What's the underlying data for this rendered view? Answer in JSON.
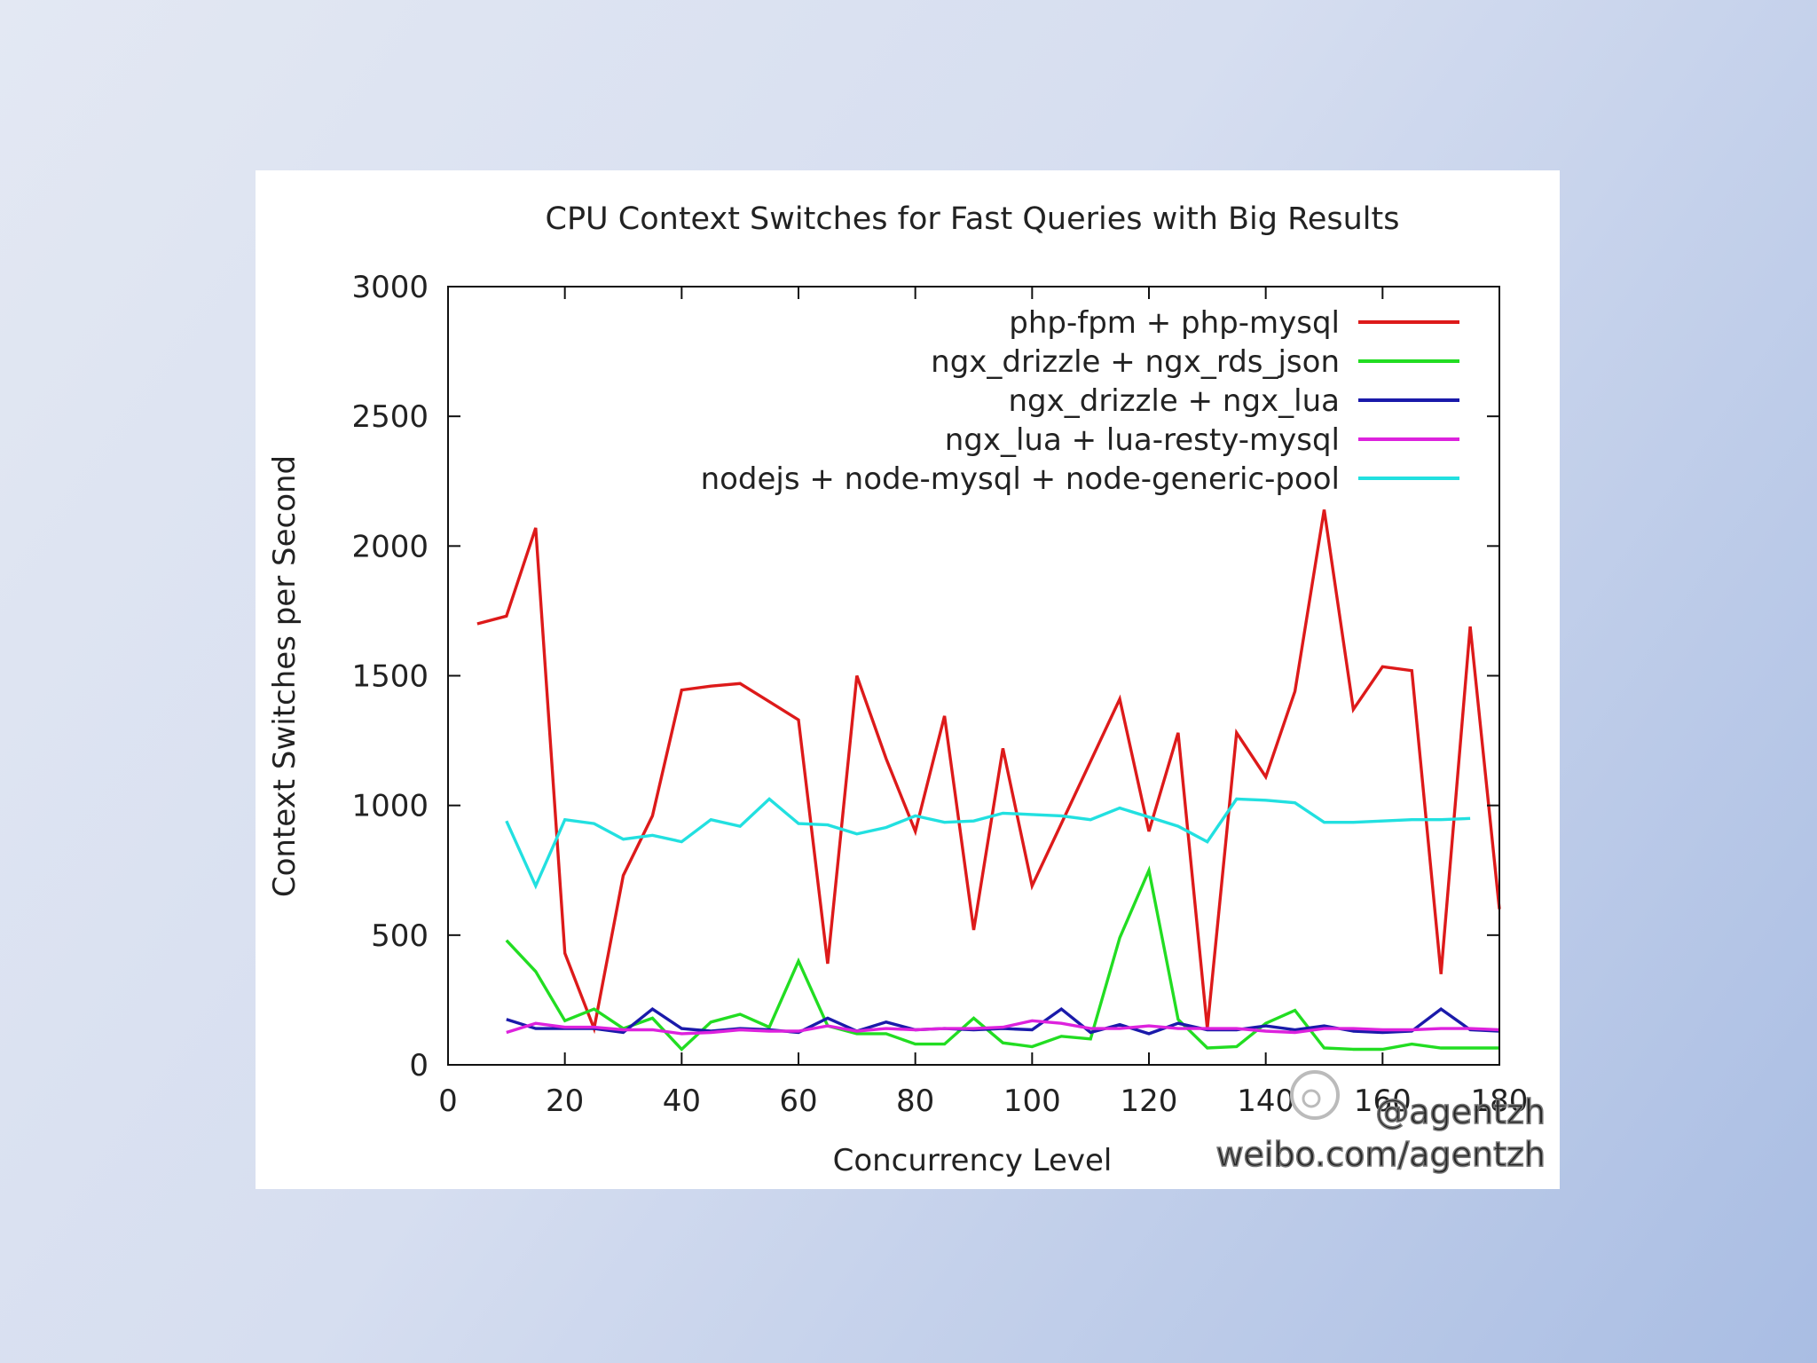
{
  "chart_data": {
    "type": "line",
    "title": "CPU Context Switches for Fast Queries with Big Results",
    "xlabel": "Concurrency Level",
    "ylabel": "Context Switches per Second",
    "xlim": [
      0,
      180
    ],
    "ylim": [
      0,
      3000
    ],
    "xticks": [
      0,
      20,
      40,
      60,
      80,
      100,
      120,
      140,
      160,
      180
    ],
    "xtick_labels": [
      "0",
      "20",
      "40",
      "60",
      "80",
      "100",
      "120",
      "140",
      "160",
      "180"
    ],
    "yticks": [
      0,
      500,
      1000,
      1500,
      2000,
      2500,
      3000
    ],
    "ytick_labels": [
      "0",
      "500",
      "1000",
      "1500",
      "2000",
      "2500",
      "3000"
    ],
    "legend_position": "top-right",
    "grid": false,
    "series": [
      {
        "name": "php-fpm + php-mysql",
        "color": "#dd1a1a",
        "x": [
          5,
          10,
          15,
          20,
          25,
          30,
          35,
          40,
          45,
          50,
          55,
          60,
          65,
          70,
          75,
          80,
          85,
          90,
          95,
          100,
          105,
          110,
          115,
          120,
          125,
          130,
          135,
          140,
          145,
          150,
          155,
          160,
          165,
          170,
          175,
          180
        ],
        "y": [
          1700,
          1730,
          2070,
          430,
          140,
          730,
          960,
          1445,
          1460,
          1470,
          1400,
          1330,
          390,
          1500,
          1180,
          900,
          1345,
          520,
          1220,
          690,
          930,
          1170,
          1410,
          900,
          1280,
          140,
          1280,
          1110,
          1440,
          2140,
          1370,
          1535,
          1520,
          350,
          1690,
          600
        ]
      },
      {
        "name": "ngx_drizzle + ngx_rds_json",
        "color": "#22dd22",
        "x": [
          10,
          15,
          20,
          25,
          30,
          35,
          40,
          45,
          50,
          55,
          60,
          65,
          70,
          75,
          80,
          85,
          90,
          95,
          100,
          105,
          110,
          115,
          120,
          125,
          130,
          135,
          140,
          145,
          150,
          155,
          160,
          165,
          170,
          175,
          180
        ],
        "y": [
          480,
          360,
          170,
          215,
          140,
          180,
          60,
          165,
          195,
          145,
          400,
          150,
          120,
          120,
          80,
          80,
          180,
          85,
          70,
          110,
          100,
          490,
          750,
          175,
          65,
          70,
          160,
          210,
          65,
          60,
          60,
          80,
          65,
          65,
          65
        ]
      },
      {
        "name": "ngx_drizzle + ngx_lua",
        "color": "#1a1aaa",
        "x": [
          10,
          15,
          20,
          25,
          30,
          35,
          40,
          45,
          50,
          55,
          60,
          65,
          70,
          75,
          80,
          85,
          90,
          95,
          100,
          105,
          110,
          115,
          120,
          125,
          130,
          135,
          140,
          145,
          150,
          155,
          160,
          165,
          170,
          175,
          180
        ],
        "y": [
          175,
          140,
          140,
          140,
          125,
          215,
          140,
          130,
          140,
          135,
          125,
          180,
          130,
          165,
          135,
          140,
          135,
          140,
          135,
          215,
          125,
          155,
          120,
          160,
          135,
          135,
          150,
          135,
          150,
          130,
          125,
          130,
          215,
          135,
          130
        ]
      },
      {
        "name": "ngx_lua + lua-resty-mysql",
        "color": "#dd22dd",
        "x": [
          10,
          15,
          20,
          25,
          30,
          35,
          40,
          45,
          50,
          55,
          60,
          65,
          70,
          75,
          80,
          85,
          90,
          95,
          100,
          105,
          110,
          115,
          120,
          125,
          130,
          135,
          140,
          145,
          150,
          155,
          160,
          165,
          170,
          175,
          180
        ],
        "y": [
          125,
          160,
          145,
          145,
          135,
          135,
          120,
          125,
          135,
          130,
          130,
          150,
          130,
          140,
          135,
          140,
          140,
          145,
          170,
          160,
          140,
          140,
          150,
          140,
          140,
          140,
          130,
          125,
          140,
          140,
          135,
          135,
          140,
          140,
          135
        ]
      },
      {
        "name": "nodejs + node-mysql + node-generic-pool",
        "color": "#22e0e0",
        "x": [
          10,
          15,
          20,
          25,
          30,
          35,
          40,
          45,
          50,
          55,
          60,
          65,
          70,
          75,
          80,
          85,
          90,
          95,
          100,
          105,
          110,
          115,
          120,
          125,
          130,
          135,
          140,
          145,
          150,
          155,
          160,
          165,
          170,
          175
        ],
        "y": [
          940,
          690,
          945,
          930,
          870,
          885,
          860,
          945,
          920,
          1025,
          930,
          925,
          890,
          915,
          960,
          935,
          940,
          970,
          965,
          960,
          945,
          990,
          955,
          920,
          860,
          1025,
          1020,
          1010,
          935,
          935,
          940,
          945,
          945,
          950
        ]
      }
    ]
  },
  "watermark": {
    "handle": "@agentzh",
    "url": "weibo.com/agentzh"
  }
}
